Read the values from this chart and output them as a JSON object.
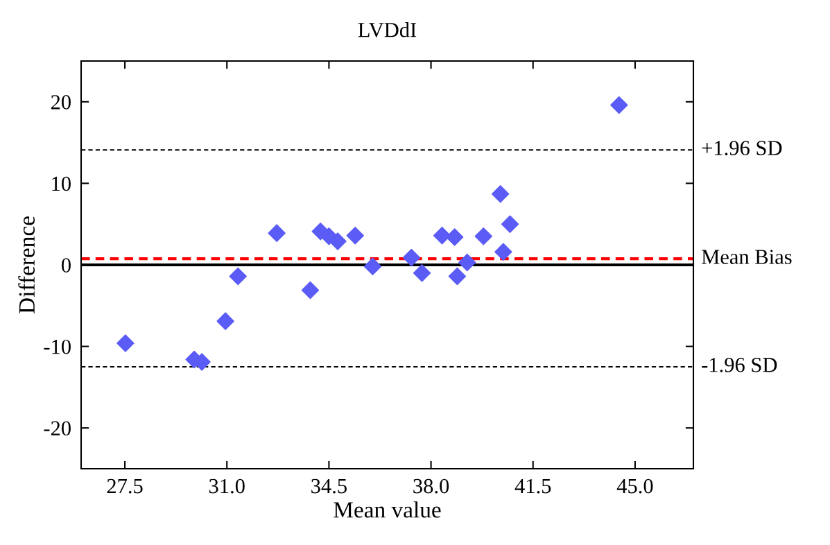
{
  "chart_data": {
    "type": "scatter",
    "title": "LVDdI",
    "xlabel": "Mean value",
    "ylabel": "Difference",
    "x": [
      27.52,
      29.88,
      30.14,
      30.95,
      31.38,
      32.71,
      33.86,
      34.21,
      34.5,
      34.8,
      35.4,
      36.0,
      37.33,
      37.69,
      38.38,
      38.81,
      38.9,
      39.24,
      39.8,
      40.38,
      40.48,
      40.71,
      44.45
    ],
    "series": [
      {
        "color": "#5b5bf5",
        "values": [
          -9.6,
          -11.6,
          -11.9,
          -6.9,
          -1.4,
          3.9,
          -3.1,
          4.1,
          3.5,
          2.9,
          3.6,
          -0.2,
          0.9,
          -1.0,
          3.6,
          3.4,
          -1.4,
          0.3,
          3.5,
          8.7,
          1.6,
          5.0,
          19.6
        ]
      }
    ],
    "marker": "diamond",
    "xlim": [
      26,
      47
    ],
    "ylim": [
      -25,
      25
    ],
    "xticks": [
      {
        "value": 27.5,
        "label": "27.5"
      },
      {
        "value": 31,
        "label": "31.0"
      },
      {
        "value": 34.5,
        "label": "34.5"
      },
      {
        "value": 38,
        "label": "38.0"
      },
      {
        "value": 41.5,
        "label": "41.5"
      },
      {
        "value": 45,
        "label": "45.0"
      }
    ],
    "yticks": [
      -20,
      -10,
      0,
      10,
      20
    ],
    "ref_lines": [
      {
        "axis": "y",
        "value": 14.1,
        "label": "+1.96 SD",
        "color": "#000000",
        "line_style": "dashed"
      },
      {
        "axis": "y",
        "value": 0,
        "label": null,
        "color": "#000000",
        "line_style": "solid"
      },
      {
        "axis": "y",
        "value": 0.75,
        "label": "Mean Bias",
        "color": "#ff0000",
        "line_style": "dashed"
      },
      {
        "axis": "y",
        "value": -12.5,
        "label": "-1.96 SD",
        "color": "#000000",
        "line_style": "dashed"
      }
    ],
    "grid": false,
    "legend": false
  }
}
